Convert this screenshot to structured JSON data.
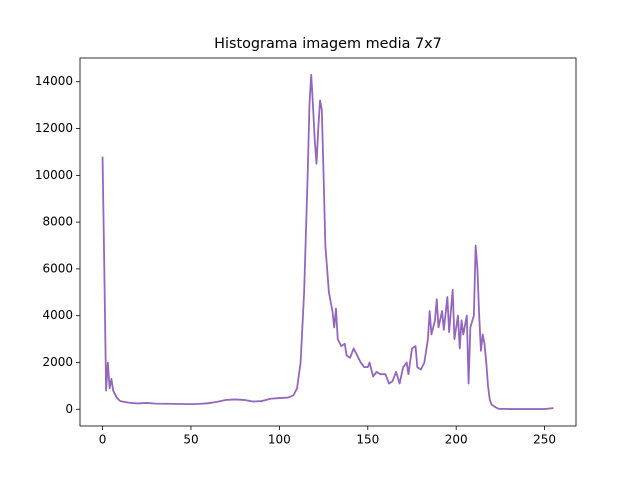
{
  "chart_data": {
    "type": "line",
    "title": "Histograma imagem media 7x7",
    "x": [
      0,
      1,
      2,
      3,
      4,
      5,
      6,
      8,
      10,
      15,
      20,
      25,
      30,
      40,
      50,
      55,
      60,
      65,
      70,
      75,
      80,
      85,
      90,
      95,
      100,
      105,
      108,
      110,
      112,
      114,
      116,
      117,
      118,
      119,
      120,
      121,
      122,
      123,
      124,
      125,
      126,
      128,
      130,
      131,
      132,
      133,
      135,
      137,
      138,
      140,
      142,
      144,
      146,
      148,
      150,
      151,
      153,
      155,
      157,
      160,
      162,
      164,
      166,
      168,
      170,
      172,
      173,
      175,
      177,
      178,
      180,
      182,
      184,
      185,
      186,
      188,
      189,
      190,
      192,
      193,
      195,
      196,
      198,
      199,
      201,
      202,
      203,
      204,
      206,
      207,
      208,
      210,
      211,
      212,
      213,
      214,
      215,
      216,
      217,
      218,
      219,
      220,
      222,
      224,
      230,
      240,
      250,
      255
    ],
    "series": [
      {
        "color": "#9467bd",
        "values": [
          10800,
          6000,
          800,
          2000,
          900,
          1300,
          800,
          500,
          350,
          280,
          250,
          270,
          240,
          230,
          220,
          230,
          260,
          320,
          400,
          420,
          400,
          330,
          350,
          450,
          480,
          500,
          600,
          900,
          2000,
          5000,
          10000,
          13000,
          14300,
          13000,
          11500,
          10500,
          12000,
          13200,
          12800,
          10000,
          7000,
          5000,
          4200,
          3500,
          4300,
          3000,
          2700,
          2800,
          2300,
          2200,
          2600,
          2300,
          2000,
          1800,
          1800,
          2000,
          1400,
          1600,
          1500,
          1500,
          1100,
          1200,
          1600,
          1100,
          1800,
          2000,
          1500,
          2600,
          2700,
          1800,
          1700,
          2000,
          3000,
          4200,
          3200,
          3800,
          4700,
          3500,
          4200,
          3400,
          4800,
          3300,
          5100,
          3000,
          4000,
          2600,
          3800,
          3200,
          4000,
          1100,
          3500,
          4000,
          7000,
          6000,
          4000,
          2500,
          3200,
          2800,
          2000,
          1000,
          400,
          200,
          100,
          20,
          10,
          10,
          10,
          50
        ]
      }
    ],
    "xlim": [
      -12.75,
      267.75
    ],
    "ylim": [
      -715,
      15015
    ],
    "xticks": [
      0,
      50,
      100,
      150,
      200,
      250
    ],
    "yticks": [
      0,
      2000,
      4000,
      6000,
      8000,
      10000,
      12000,
      14000
    ]
  }
}
